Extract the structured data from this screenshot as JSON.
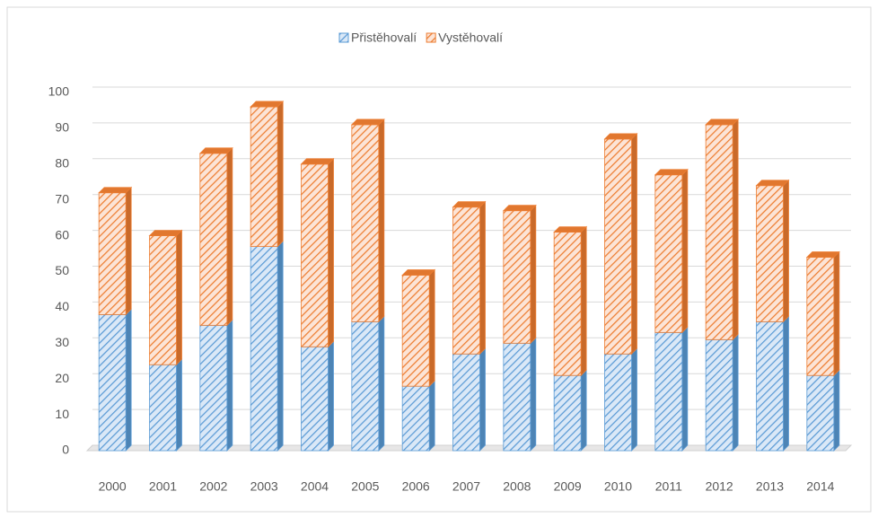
{
  "chart_data": {
    "type": "bar",
    "stacked": true,
    "categories": [
      "2000",
      "2001",
      "2002",
      "2003",
      "2004",
      "2005",
      "2006",
      "2007",
      "2008",
      "2009",
      "2010",
      "2011",
      "2012",
      "2013",
      "2014"
    ],
    "series": [
      {
        "name": "Přistěhovalí",
        "color": "#5b9bd5",
        "values": [
          38,
          24,
          35,
          57,
          29,
          36,
          18,
          27,
          30,
          21,
          27,
          33,
          31,
          36,
          21
        ]
      },
      {
        "name": "Vystěhovalí",
        "color": "#ed7d31",
        "values": [
          34,
          36,
          48,
          39,
          51,
          55,
          31,
          41,
          37,
          40,
          60,
          44,
          60,
          38,
          33
        ]
      }
    ],
    "ylim": [
      0,
      100
    ],
    "yticks": [
      0,
      10,
      20,
      30,
      40,
      50,
      60,
      70,
      80,
      90,
      100
    ],
    "grid": true,
    "legend": "top"
  }
}
